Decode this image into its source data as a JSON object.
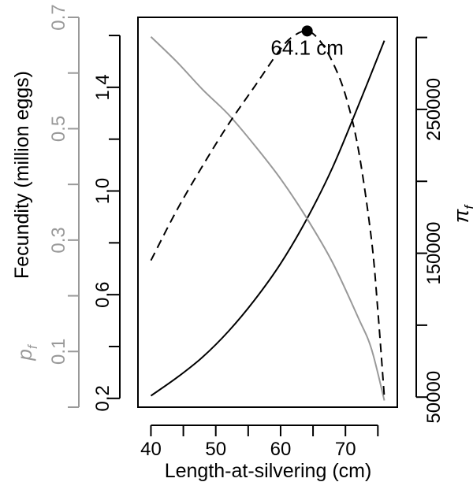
{
  "chart_data": {
    "type": "line",
    "xlabel": "Length-at-silvering (cm)",
    "ylabel_left_inner": "Fecundity (million eggs)",
    "ylabel_left_outer_main": "p",
    "ylabel_left_outer_sub": "f",
    "ylabel_right_main": "π",
    "ylabel_right_sub": "f",
    "xlim": [
      38,
      78
    ],
    "x_ticks": [
      40,
      45,
      50,
      55,
      60,
      65,
      70,
      75
    ],
    "x_tick_labels": [
      "40",
      "50",
      "60",
      "70"
    ],
    "fecundity_ylim": [
      0.166,
      1.67
    ],
    "fecundity_ticks": [
      0.2,
      0.4,
      0.6,
      0.8,
      1.0,
      1.2,
      1.4,
      1.6
    ],
    "fecundity_tick_labels": [
      "0.2",
      "0.6",
      "1.0",
      "1.4"
    ],
    "pf_ylim": [
      0.0,
      0.7
    ],
    "pf_ticks": [
      0.0,
      0.1,
      0.2,
      0.3,
      0.4,
      0.5,
      0.6,
      0.7
    ],
    "pf_tick_labels": [
      "0.1",
      "0.3",
      "0.5",
      "0.7"
    ],
    "pi_ylim": [
      43000,
      314000
    ],
    "pi_ticks": [
      50000,
      100000,
      150000,
      200000,
      250000,
      300000
    ],
    "pi_tick_labels": [
      "50000",
      "150000",
      "250000"
    ],
    "series": [
      {
        "axis": "fecundity",
        "style": "solid",
        "color": "#000000",
        "x": [
          40,
          44,
          48,
          52,
          56,
          60,
          64,
          68,
          72,
          76
        ],
        "y": [
          0.21,
          0.28,
          0.36,
          0.46,
          0.58,
          0.72,
          0.89,
          1.09,
          1.33,
          1.58
        ]
      },
      {
        "axis": "pf",
        "style": "solid",
        "color": "#999999",
        "x": [
          40,
          44,
          48,
          52,
          56,
          60,
          64,
          68,
          72,
          74,
          76
        ],
        "y": [
          0.665,
          0.62,
          0.57,
          0.525,
          0.47,
          0.41,
          0.34,
          0.26,
          0.16,
          0.105,
          0.012
        ]
      },
      {
        "axis": "pi",
        "style": "dashed",
        "color": "#000000",
        "x": [
          40,
          44,
          48,
          52,
          56,
          60,
          62,
          64.1,
          66,
          68,
          70,
          72,
          74,
          75,
          76
        ],
        "y": [
          145000,
          180000,
          211000,
          240000,
          266000,
          292000,
          301000,
          304500,
          298000,
          283000,
          260000,
          222000,
          160000,
          110000,
          50000
        ]
      }
    ],
    "optimum": {
      "x": 64.1,
      "y_pi": 304500,
      "label": "64.1 cm"
    },
    "colors": {
      "main": "#000000",
      "pf": "#999999"
    }
  }
}
